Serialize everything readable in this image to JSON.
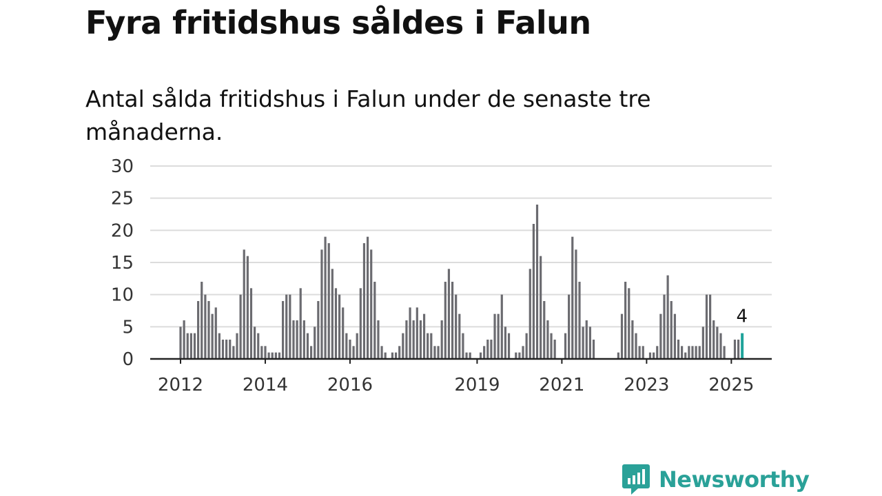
{
  "header": {
    "title": "Fyra fritidshus såldes i Falun",
    "subtitle": "Antal sålda fritidshus i Falun under de senaste tre månaderna."
  },
  "brand": {
    "name": "Newsworthy",
    "color": "#2aa198",
    "icon": "newsworthy-logo-icon"
  },
  "chart_data": {
    "type": "bar",
    "title": "",
    "xlabel": "",
    "ylabel": "",
    "ylim": [
      0,
      30
    ],
    "yticks": [
      0,
      5,
      10,
      15,
      20,
      25,
      30
    ],
    "grid": true,
    "legend": "none",
    "bar_color": "#6b6b70",
    "highlight_color": "#1fa39a",
    "x_start": "2012-01",
    "frequency": "monthly",
    "xtick_labels": [
      {
        "label": "2012",
        "date": "2012-01"
      },
      {
        "label": "2014",
        "date": "2014-01"
      },
      {
        "label": "2016",
        "date": "2016-01"
      },
      {
        "label": "2019",
        "date": "2019-01"
      },
      {
        "label": "2021",
        "date": "2021-01"
      },
      {
        "label": "2023",
        "date": "2023-01"
      },
      {
        "label": "2025",
        "date": "2025-01"
      }
    ],
    "values": [
      5,
      6,
      4,
      4,
      4,
      9,
      12,
      10,
      9,
      7,
      8,
      4,
      3,
      3,
      3,
      2,
      4,
      10,
      17,
      16,
      11,
      5,
      4,
      2,
      2,
      1,
      1,
      1,
      1,
      9,
      10,
      10,
      6,
      6,
      11,
      6,
      4,
      2,
      5,
      9,
      17,
      19,
      18,
      14,
      11,
      10,
      8,
      4,
      3,
      2,
      4,
      11,
      18,
      19,
      17,
      12,
      6,
      2,
      1,
      0,
      1,
      1,
      2,
      4,
      6,
      8,
      6,
      8,
      6,
      7,
      4,
      4,
      2,
      2,
      6,
      12,
      14,
      12,
      10,
      7,
      4,
      1,
      1,
      0,
      0,
      1,
      2,
      3,
      3,
      7,
      7,
      10,
      5,
      4,
      0,
      1,
      1,
      2,
      4,
      14,
      21,
      24,
      16,
      9,
      6,
      4,
      3,
      0,
      0,
      4,
      10,
      19,
      17,
      12,
      5,
      6,
      5,
      3,
      0,
      0,
      0,
      0,
      0,
      0,
      1,
      7,
      12,
      11,
      6,
      4,
      2,
      2,
      0,
      1,
      1,
      2,
      7,
      10,
      13,
      9,
      7,
      3,
      2,
      1,
      2,
      2,
      2,
      2,
      5,
      10,
      10,
      6,
      5,
      4,
      2,
      0,
      0,
      3,
      3,
      4
    ],
    "highlight": {
      "date": "2025-04",
      "value": 4,
      "label": "4"
    }
  }
}
